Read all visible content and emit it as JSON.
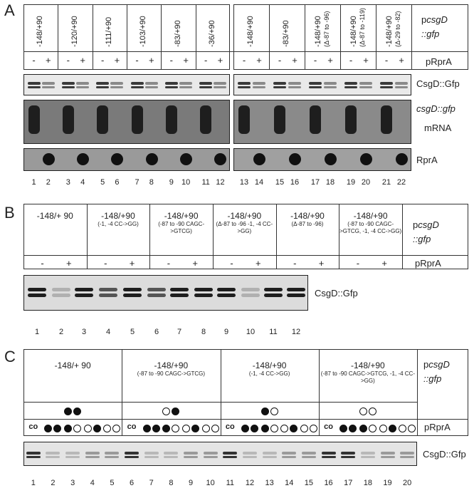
{
  "panelA": {
    "label": "A",
    "constructs_left": [
      "-148/+90",
      "-120/+90",
      "-111/+90",
      "-103/+90",
      "-83/+90",
      "-36/+90"
    ],
    "constructs_right": [
      {
        "main": "-148/+90",
        "sub": ""
      },
      {
        "main": "-83/+90",
        "sub": ""
      },
      {
        "main": "-148/+90",
        "sub": "(Δ-87 to -96)"
      },
      {
        "main": "-148/+90",
        "sub": "(Δ-87 to -119)"
      },
      {
        "main": "-148/+90",
        "sub": "(Δ-29 to -82)"
      }
    ],
    "plasmid_label": "pcsgD ::gfp",
    "plasmid_pre": "p",
    "plasmid_gene": "csgD",
    "plasmid_post": "::gfp",
    "prpra_label": "pRprA",
    "minus": "-",
    "plus": "+",
    "row_label_gfp": "CsgD::Gfp",
    "row_label_mrna_1": "csgD::gfp",
    "row_label_mrna_2": "mRNA",
    "row_label_rpra": "RprA",
    "lanes": [
      "1",
      "2",
      "3",
      "4",
      "5",
      "6",
      "7",
      "8",
      "9",
      "10",
      "11",
      "12",
      "13",
      "14",
      "15",
      "16",
      "17",
      "18",
      "19",
      "20",
      "21",
      "22"
    ]
  },
  "panelB": {
    "label": "B",
    "constructs": [
      {
        "main": "-148/+ 90",
        "sub": ""
      },
      {
        "main": "-148/+90",
        "sub": "(-1, -4 CC->GG)"
      },
      {
        "main": "-148/+90",
        "sub": "(-87 to -90 CAGC->GTCG)"
      },
      {
        "main": "-148/+90",
        "sub": "(Δ-87 to -96 -1, -4 CC->GG)"
      },
      {
        "main": "-148/+90",
        "sub": "(Δ-87 to -96)"
      },
      {
        "main": "-148/+90",
        "sub": "(-87 to -90 CAGC->GTCG, -1, -4 CC->GG)"
      }
    ],
    "plasmid_pre": "p",
    "plasmid_gene": "csgD",
    "plasmid_post": "::gfp",
    "prpra_label": "pRprA",
    "row_label_gfp": "CsgD::Gfp",
    "lanes": [
      "1",
      "2",
      "3",
      "4",
      "5",
      "6",
      "7",
      "8",
      "9",
      "10",
      "11",
      "12"
    ]
  },
  "panelC": {
    "label": "C",
    "constructs": [
      {
        "main": "-148/+ 90",
        "sub": ""
      },
      {
        "main": "-148/+90",
        "sub": "(-87 to -90 CAGC->GTCG)"
      },
      {
        "main": "-148/+90",
        "sub": "(-1, -4 CC->GG)"
      },
      {
        "main": "-148/+90",
        "sub": "(-87 to -90 CAGC->GTCG, -1, -4 CC->GG)"
      }
    ],
    "co_label": "co",
    "plasmid_pre": "p",
    "plasmid_gene": "csgD",
    "plasmid_post": "::gfp",
    "prpra_label": "pRprA",
    "row_label_gfp": "CsgD::Gfp",
    "lanes": [
      "1",
      "2",
      "3",
      "4",
      "5",
      "6",
      "7",
      "8",
      "9",
      "10",
      "11",
      "12",
      "13",
      "14",
      "15",
      "16",
      "17",
      "18",
      "19",
      "20"
    ]
  }
}
